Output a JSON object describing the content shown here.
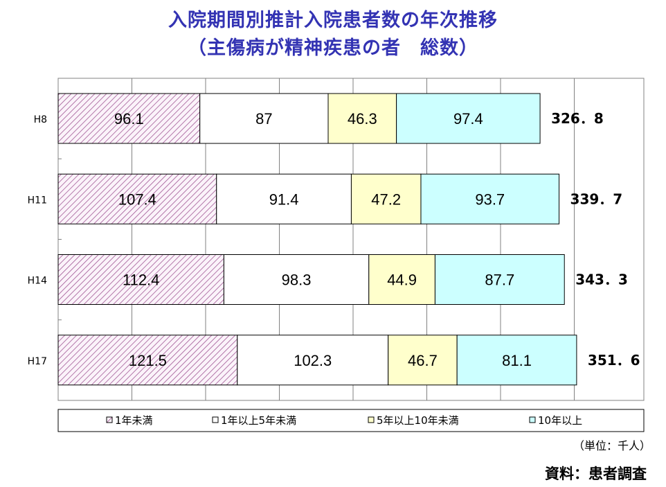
{
  "title_line1": "入院期間別推計入院患者数の年次推移",
  "title_line2": "（主傷病が精神疾患の者　総数）",
  "unit_note": "（単位：千人）",
  "source_note": "資料：患者調査",
  "colors": {
    "title": "#3333b3",
    "s1_stripe": "#9b4f8f",
    "s1_bg": "#fbf3fa",
    "s2": "#ffffff",
    "s3": "#ffffcc",
    "s4": "#ccffff"
  },
  "chart_data": {
    "type": "bar",
    "orientation": "horizontal",
    "stacked": true,
    "title": "入院期間別推計入院患者数の年次推移 （主傷病が精神疾患の者　総数）",
    "categories": [
      "H8",
      "H11",
      "H14",
      "H17"
    ],
    "series": [
      {
        "name": "1年未満",
        "values": [
          96.1,
          107.4,
          112.4,
          121.5
        ],
        "labels": [
          "96.1",
          "107.4",
          "112.4",
          "121.5"
        ]
      },
      {
        "name": "1年以上5年未満",
        "values": [
          87,
          91.4,
          98.3,
          102.3
        ],
        "labels": [
          "87",
          "91.4",
          "98.3",
          "102.3"
        ]
      },
      {
        "name": "5年以上10年未満",
        "values": [
          46.3,
          47.2,
          44.9,
          46.7
        ],
        "labels": [
          "46.3",
          "47.2",
          "44.9",
          "46.7"
        ]
      },
      {
        "name": "10年以上",
        "values": [
          97.4,
          93.7,
          87.7,
          81.1
        ],
        "labels": [
          "97.4",
          "93.7",
          "87.7",
          "81.1"
        ]
      }
    ],
    "totals": [
      326.8,
      339.7,
      343.3,
      351.6
    ],
    "total_labels": [
      "326．8",
      "339．7",
      "343．3",
      "351．6"
    ],
    "xlim": [
      0,
      400
    ],
    "grid": true,
    "legend_position": "bottom",
    "xlabel": "",
    "ylabel": ""
  }
}
